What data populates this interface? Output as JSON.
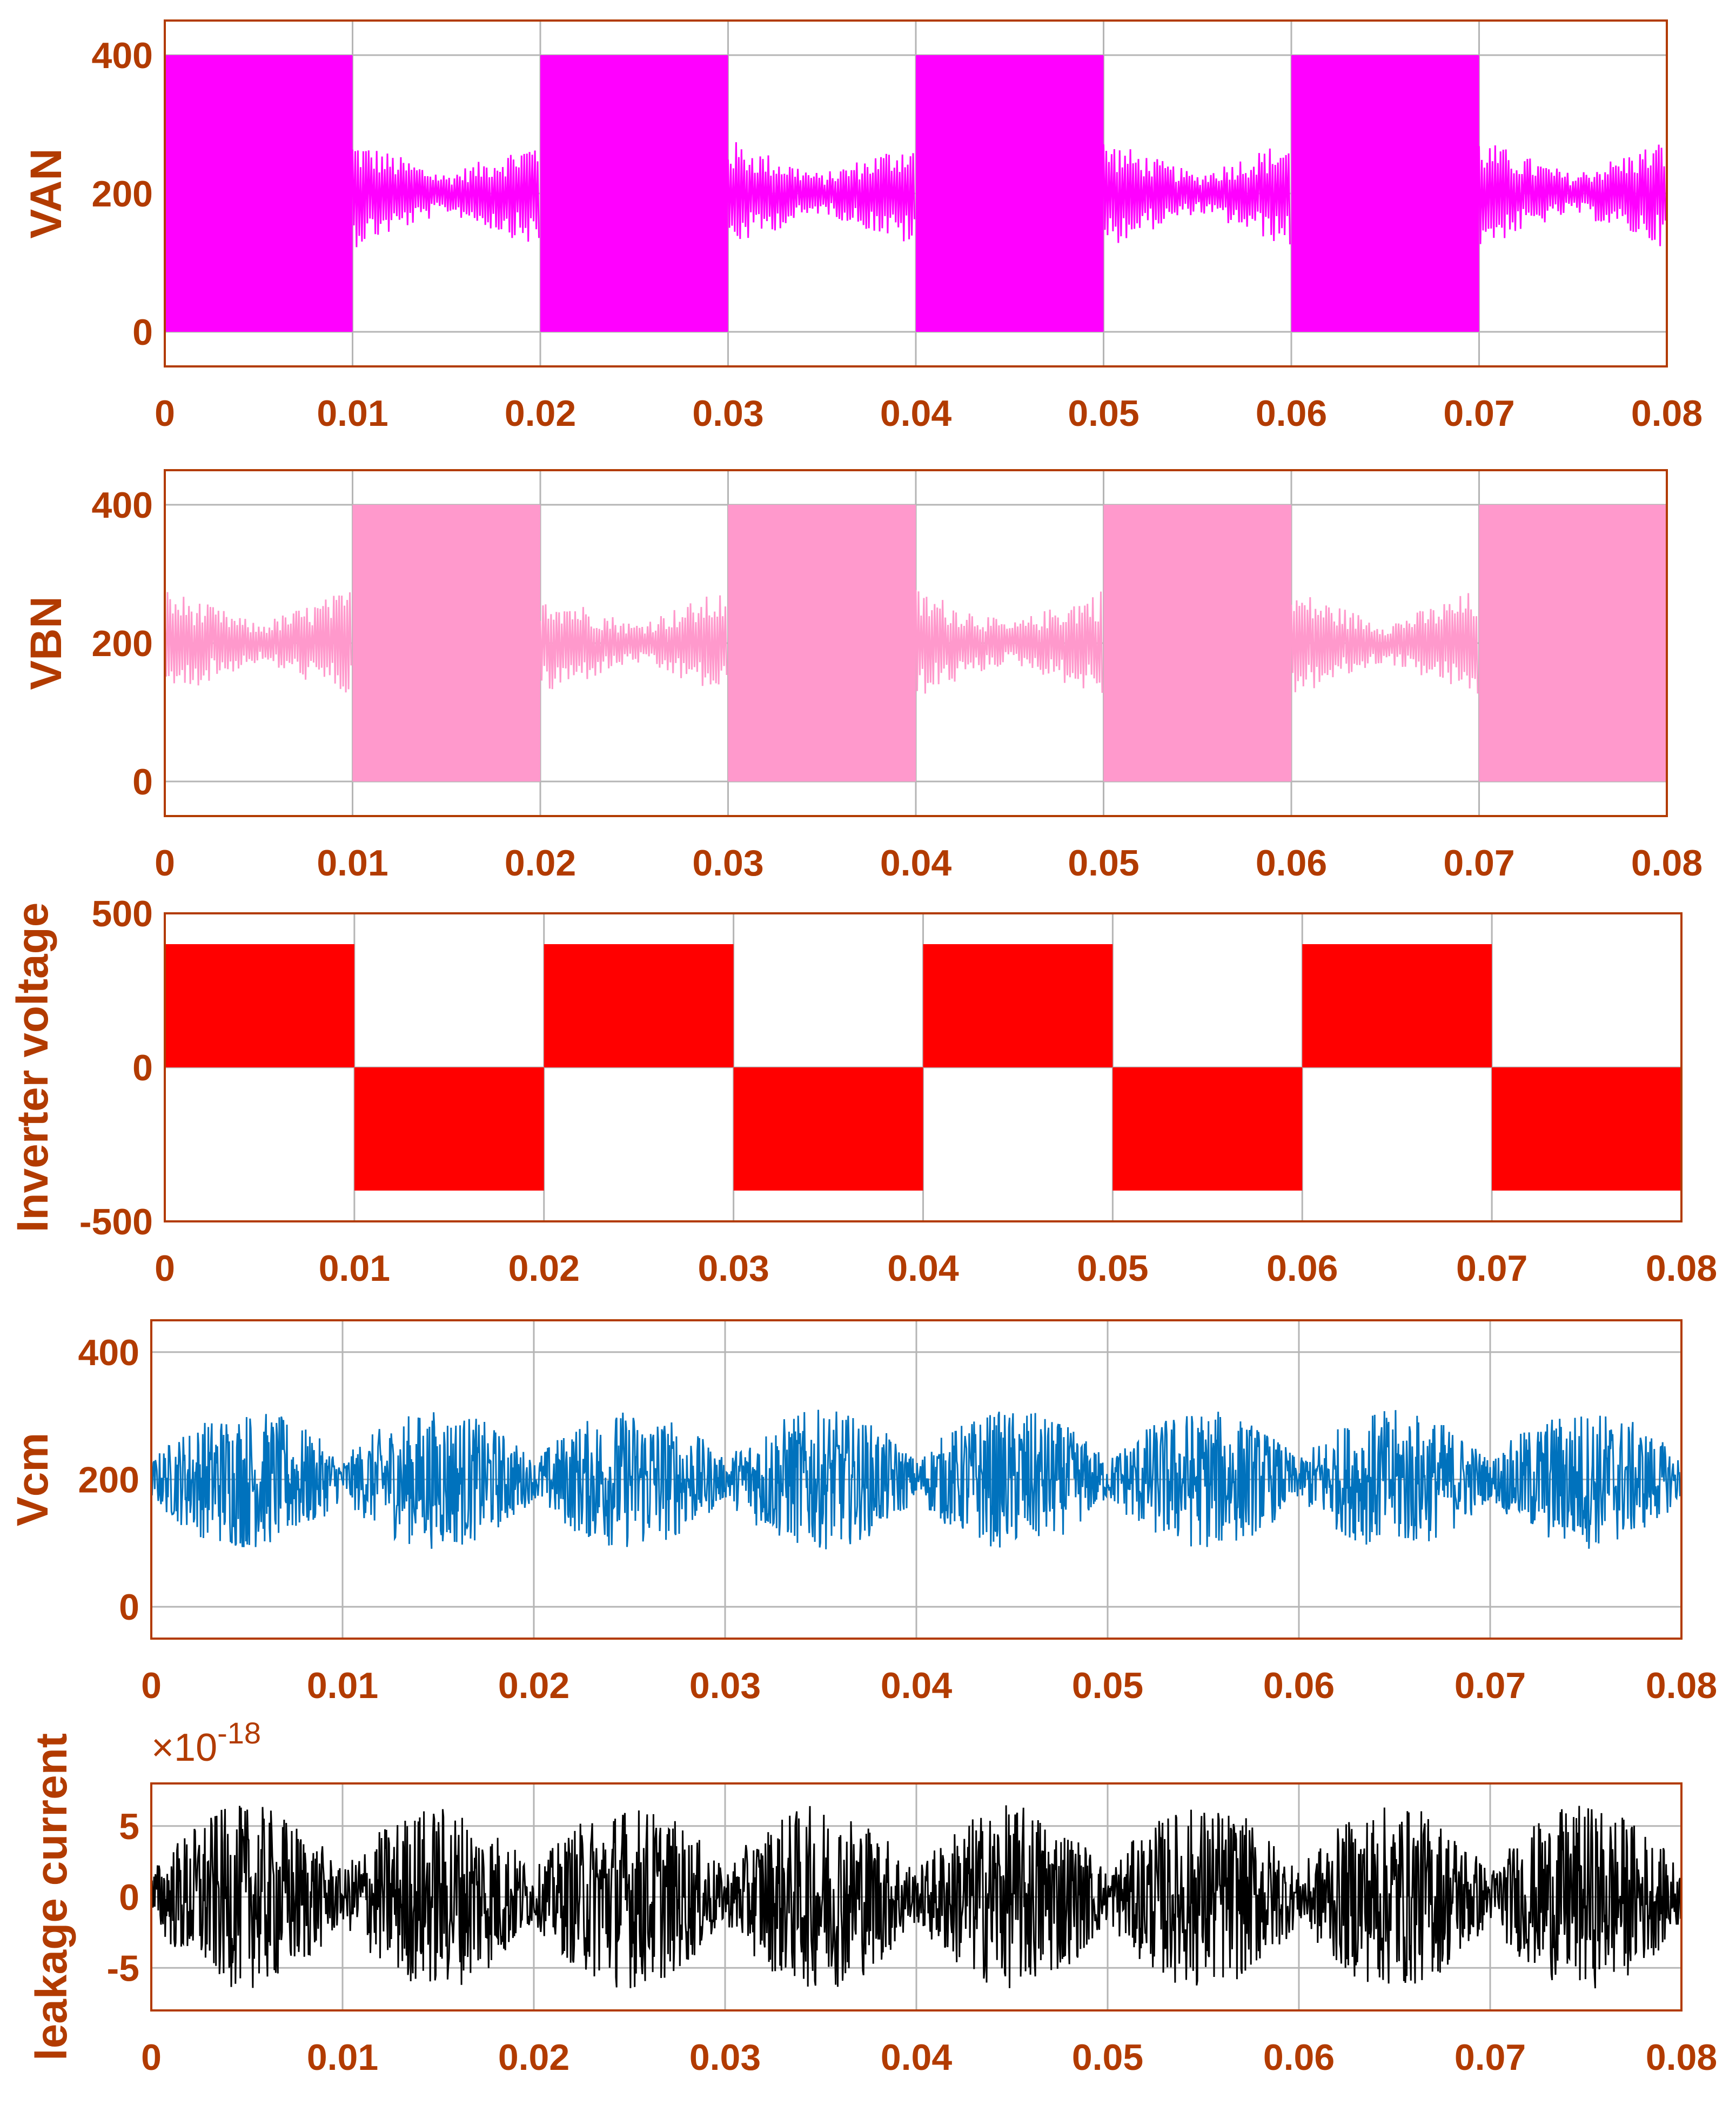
{
  "chart_data": [
    {
      "type": "line",
      "key": "van",
      "ylabel": "VAN",
      "color": "#FF00FF",
      "xlim": [
        0,
        0.08
      ],
      "ylim": [
        -50,
        450
      ],
      "xticks": [
        0,
        0.01,
        0.02,
        0.03,
        0.04,
        0.05,
        0.06,
        0.07,
        0.08
      ],
      "xtick_labels": [
        "0",
        "0.01",
        "0.02",
        "0.03",
        "0.04",
        "0.05",
        "0.06",
        "0.07",
        "0.08"
      ],
      "yticks": [
        0,
        200,
        400
      ],
      "ytick_labels": [
        "0",
        "200",
        "400"
      ],
      "grid": true,
      "signal": {
        "kind": "pwm",
        "low": 0,
        "high": 400,
        "active_half": "first",
        "ripple_center": 200,
        "ripple_amp": 80
      }
    },
    {
      "type": "line",
      "key": "vbn",
      "ylabel": "VBN",
      "color": "#FF99CC",
      "xlim": [
        0,
        0.08
      ],
      "ylim": [
        -50,
        450
      ],
      "xticks": [
        0,
        0.01,
        0.02,
        0.03,
        0.04,
        0.05,
        0.06,
        0.07,
        0.08
      ],
      "xtick_labels": [
        "0",
        "0.01",
        "0.02",
        "0.03",
        "0.04",
        "0.05",
        "0.06",
        "0.07",
        "0.08"
      ],
      "yticks": [
        0,
        200,
        400
      ],
      "ytick_labels": [
        "0",
        "200",
        "400"
      ],
      "grid": true,
      "signal": {
        "kind": "pwm",
        "low": 0,
        "high": 400,
        "active_half": "second",
        "ripple_center": 200,
        "ripple_amp": 80
      }
    },
    {
      "type": "line",
      "key": "inverter",
      "ylabel": "Inverter voltage",
      "color": "#FF0000",
      "xlim": [
        0,
        0.08
      ],
      "ylim": [
        -500,
        500
      ],
      "xticks": [
        0,
        0.01,
        0.02,
        0.03,
        0.04,
        0.05,
        0.06,
        0.07,
        0.08
      ],
      "xtick_labels": [
        "0",
        "0.01",
        "0.02",
        "0.03",
        "0.04",
        "0.05",
        "0.06",
        "0.07",
        "0.08"
      ],
      "yticks": [
        -500,
        0,
        500
      ],
      "ytick_labels": [
        "-500",
        "0",
        "500"
      ],
      "grid": true,
      "signal": {
        "kind": "unipolar",
        "amplitude": 400
      }
    },
    {
      "type": "line",
      "key": "vcm",
      "ylabel": "Vcm",
      "color": "#0072BD",
      "xlim": [
        0,
        0.08
      ],
      "ylim": [
        -50,
        450
      ],
      "xticks": [
        0,
        0.01,
        0.02,
        0.03,
        0.04,
        0.05,
        0.06,
        0.07,
        0.08
      ],
      "xtick_labels": [
        "0",
        "0.01",
        "0.02",
        "0.03",
        "0.04",
        "0.05",
        "0.06",
        "0.07",
        "0.08"
      ],
      "yticks": [
        0,
        200,
        400
      ],
      "ytick_labels": [
        "0",
        "200",
        "400"
      ],
      "grid": true,
      "signal": {
        "kind": "noise",
        "center": 200,
        "amp": 110
      }
    },
    {
      "type": "line",
      "key": "leakage",
      "ylabel": "leakage current",
      "color": "#000000",
      "xlim": [
        0,
        0.08
      ],
      "ylim": [
        -8,
        8
      ],
      "xticks": [
        0,
        0.01,
        0.02,
        0.03,
        0.04,
        0.05,
        0.06,
        0.07,
        0.08
      ],
      "xtick_labels": [
        "0",
        "0.01",
        "0.02",
        "0.03",
        "0.04",
        "0.05",
        "0.06",
        "0.07",
        "0.08"
      ],
      "yticks": [
        -5,
        0,
        5
      ],
      "ytick_labels": [
        "-5",
        "0",
        "5"
      ],
      "grid": true,
      "exponent_prefix": "×10",
      "exponent_power": "-18",
      "signal": {
        "kind": "noise",
        "center": 0,
        "amp": 6.5
      }
    }
  ]
}
